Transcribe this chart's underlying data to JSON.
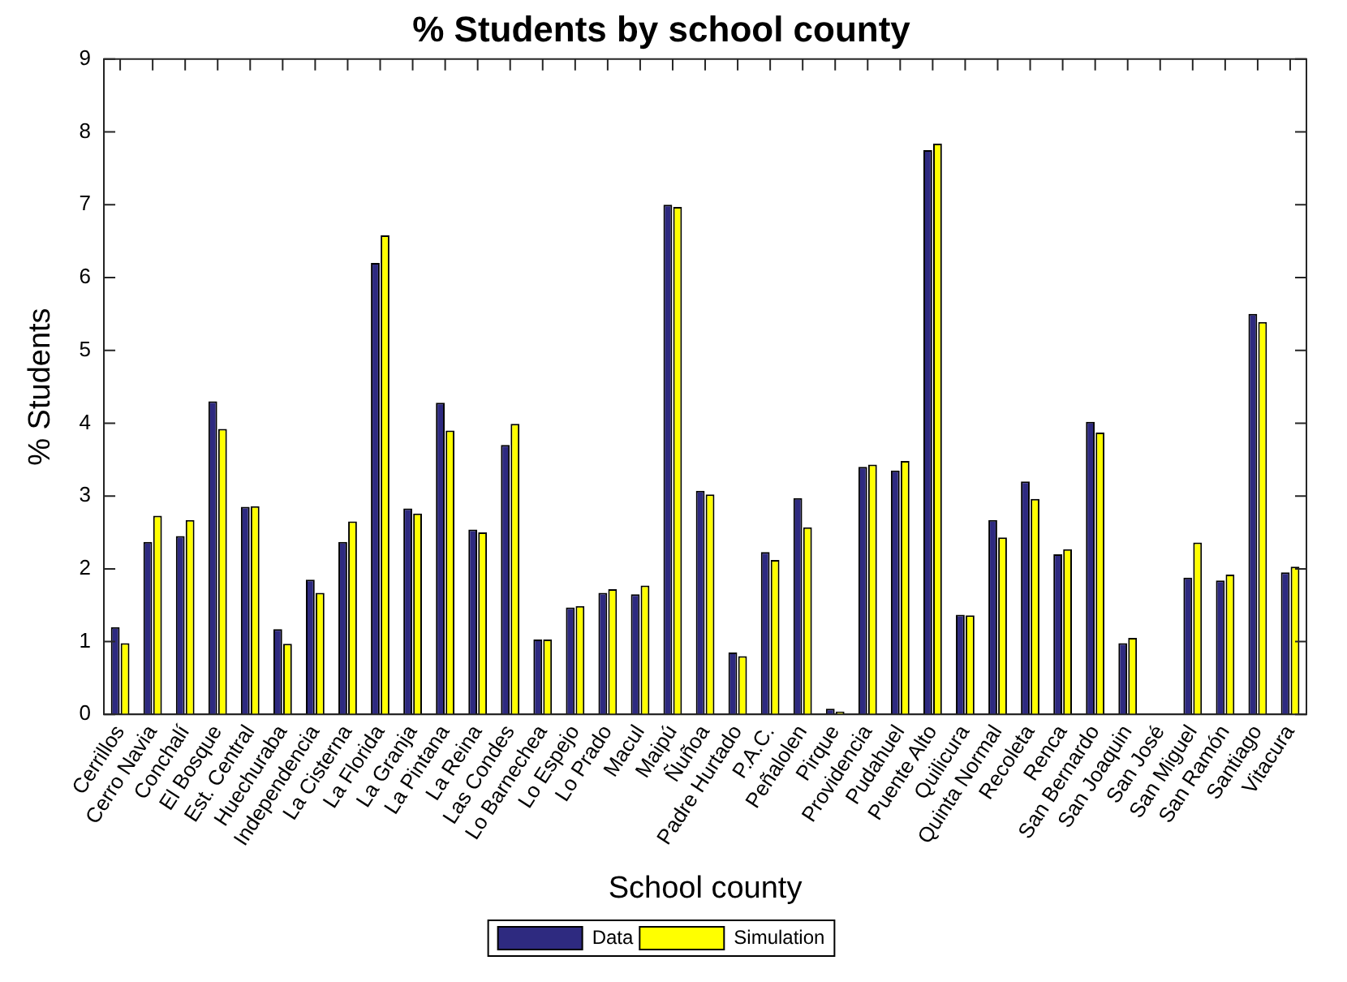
{
  "chart_data": {
    "type": "bar",
    "title": "% Students by school county",
    "xlabel": "School county",
    "ylabel": "% Students",
    "categories": [
      "Cerrillos",
      "Cerro Navia",
      "Conchalí",
      "El Bosque",
      "Est. Central",
      "Huechuraba",
      "Independencia",
      "La Cisterna",
      "La Florida",
      "La Granja",
      "La Pintana",
      "La Reina",
      "Las Condes",
      "Lo Barnechea",
      "Lo Espejo",
      "Lo Prado",
      "Macul",
      "Maipú",
      "Ñuñoa",
      "Padre Hurtado",
      "P.A.C.",
      "Peñalolen",
      "Pirque",
      "Providencia",
      "Pudahuel",
      "Puente Alto",
      "Quilicura",
      "Quinta Normal",
      "Recoleta",
      "Renca",
      "San Bernardo",
      "San Joaquin",
      "San José",
      "San Miguel",
      "San Ramón",
      "Santiago",
      "Vitacura"
    ],
    "series": [
      {
        "name": "Data",
        "color": "#2e2a80",
        "values": [
          1.2,
          2.37,
          2.45,
          4.3,
          2.85,
          1.17,
          1.85,
          2.37,
          6.2,
          2.83,
          4.28,
          2.54,
          3.7,
          1.03,
          1.47,
          1.67,
          1.65,
          7.0,
          3.07,
          0.85,
          2.23,
          2.97,
          0.08,
          3.4,
          3.35,
          7.75,
          1.37,
          2.67,
          3.2,
          2.2,
          4.02,
          0.98,
          0,
          1.88,
          1.84,
          5.5,
          1.95
        ]
      },
      {
        "name": "Simulation",
        "color": "#ffff00",
        "values": [
          0.98,
          2.73,
          2.67,
          3.92,
          2.86,
          0.97,
          1.67,
          2.65,
          6.58,
          2.76,
          3.9,
          2.5,
          3.99,
          1.03,
          1.49,
          1.72,
          1.77,
          6.97,
          3.02,
          0.8,
          2.12,
          2.57,
          0.04,
          3.43,
          3.48,
          7.84,
          1.36,
          2.43,
          2.96,
          2.27,
          3.87,
          1.05,
          0,
          2.36,
          1.92,
          5.39,
          2.03
        ]
      }
    ],
    "ylim": [
      0,
      9
    ],
    "yticks": [
      0,
      1,
      2,
      3,
      4,
      5,
      6,
      7,
      8,
      9
    ],
    "grid": false,
    "legend": "bottom"
  }
}
